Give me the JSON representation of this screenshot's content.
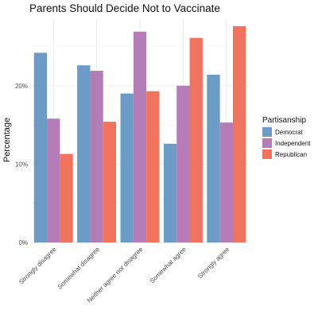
{
  "chart_data": {
    "type": "bar",
    "title": "Parents Should Decide Not to Vaccinate",
    "xlabel": "",
    "ylabel": "Percentage",
    "categories": [
      "Strongly disagree",
      "Somewhat disagree",
      "Neither agree nor disagree",
      "Somewhat agree",
      "Strongly agree"
    ],
    "series": [
      {
        "name": "Democrat",
        "color": "#6c9bc6",
        "values": [
          24.2,
          22.6,
          19.0,
          12.6,
          21.4
        ]
      },
      {
        "name": "Independent",
        "color": "#b57db8",
        "values": [
          15.8,
          21.9,
          26.9,
          20.0,
          15.3
        ]
      },
      {
        "name": "Republican",
        "color": "#f0735e",
        "values": [
          11.3,
          15.4,
          19.3,
          26.1,
          27.6
        ]
      }
    ],
    "ylim": [
      0,
      28.5
    ],
    "yticks": [
      0,
      10,
      20
    ],
    "ytick_labels": [
      "0%",
      "10%",
      "20%"
    ],
    "legend": {
      "title": "Partisanship",
      "position": "right"
    },
    "grid": true
  }
}
